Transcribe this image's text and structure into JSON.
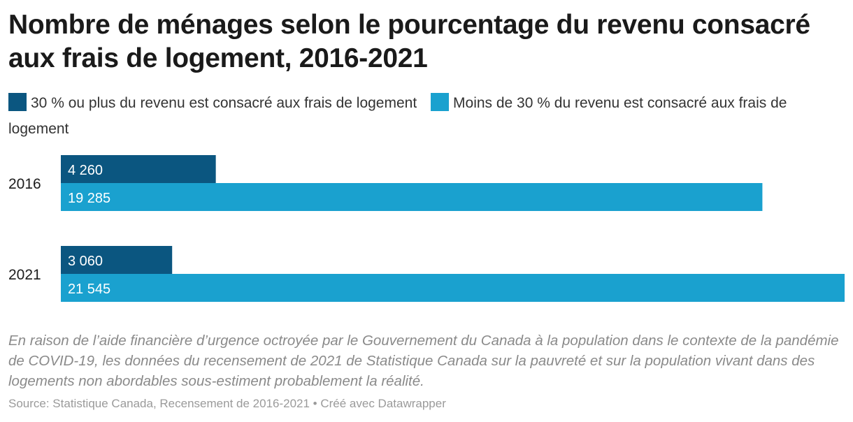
{
  "chart_data": {
    "type": "bar",
    "orientation": "horizontal",
    "title": "Nombre de ménages selon le pourcentage du revenu consacré aux frais de logement, 2016-2021",
    "categories": [
      "2016",
      "2021"
    ],
    "series": [
      {
        "name": "30 % ou plus du revenu est consacré aux frais de logement",
        "values": [
          4260,
          3060
        ],
        "labels": [
          "4 260",
          "3 060"
        ],
        "color": "#0b5680"
      },
      {
        "name": "Moins de 30 % du revenu est consacré aux frais de logement",
        "values": [
          19285,
          21545
        ],
        "labels": [
          "19 285",
          "21 545"
        ],
        "color": "#1aa1cf"
      }
    ],
    "xlim": [
      0,
      21545
    ],
    "grid": false,
    "legend_position": "top"
  },
  "notes": "En raison de l’aide financière d’urgence octroyée par le Gouvernement du Canada à la population dans le contexte de la pandémie de COVID-19, les données du recensement de 2021 de Statistique Canada sur la pauvreté et sur la population vivant dans des logements non abordables sous-estiment probablement la réalité.",
  "source": "Source: Statistique Canada, Recensement de 2016-2021 • Créé avec Datawrapper"
}
